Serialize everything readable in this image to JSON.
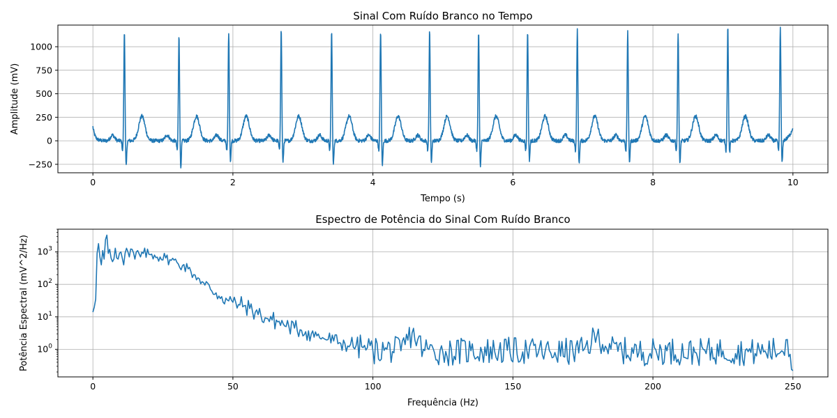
{
  "chart_data": [
    {
      "type": "line",
      "title": "Sinal Com Ruído Branco no Tempo",
      "xlabel": "Tempo (s)",
      "ylabel": "Amplitude (mV)",
      "xlim": [
        -0.5,
        10.5
      ],
      "ylim": [
        -340,
        1230
      ],
      "xticks": [
        0,
        2,
        4,
        6,
        8,
        10
      ],
      "xtick_labels": [
        "0",
        "2",
        "4",
        "6",
        "8",
        "10"
      ],
      "yticks": [
        -250,
        0,
        250,
        500,
        750,
        1000
      ],
      "ytick_labels": [
        "−250",
        "0",
        "250",
        "500",
        "750",
        "1000"
      ],
      "grid": true,
      "color": "#1f77b4",
      "signal": {
        "description_of_shape": "ECG-like trace with white noise",
        "r_peak_times_s": [
          0.45,
          1.23,
          1.94,
          2.69,
          3.41,
          4.11,
          4.81,
          5.51,
          6.21,
          6.92,
          7.64,
          8.36,
          9.07,
          9.82
        ],
        "r_peak_values_mV": [
          1110,
          1065,
          1100,
          1130,
          1110,
          1115,
          1120,
          1105,
          1115,
          1125,
          1110,
          1100,
          1155,
          1150
        ],
        "s_trough_values_mV": [
          -250,
          -260,
          -190,
          -210,
          -225,
          -230,
          -205,
          -250,
          -180,
          -225,
          -200,
          -220,
          -100,
          -215
        ],
        "t_wave_peak_mV": 290,
        "baseline_mV": 0,
        "start_value_mV": 150,
        "end_value_mV": 90
      }
    },
    {
      "type": "line",
      "title": "Espectro de Potência do Sinal Com Ruído Branco",
      "xlabel": "Frequência (Hz)",
      "ylabel": "Potência Espectral (mV^2/Hz)",
      "yscale": "log",
      "xlim": [
        -12.5,
        262.5
      ],
      "ylim_log10": [
        -0.85,
        3.7
      ],
      "xticks": [
        0,
        50,
        100,
        150,
        200,
        250
      ],
      "xtick_labels": [
        "0",
        "50",
        "100",
        "150",
        "200",
        "250"
      ],
      "yticks_log10": [
        0,
        1,
        2,
        3
      ],
      "ytick_labels": [
        "10^0",
        "10^1",
        "10^2",
        "10^3"
      ],
      "grid": true,
      "color": "#1f77b4",
      "points": [
        [
          0,
          14
        ],
        [
          0.5,
          20
        ],
        [
          1,
          35
        ],
        [
          1.5,
          900
        ],
        [
          2,
          1800
        ],
        [
          2.5,
          700
        ],
        [
          3,
          400
        ],
        [
          3.5,
          1100
        ],
        [
          4,
          600
        ],
        [
          4.5,
          2400
        ],
        [
          5,
          3300
        ],
        [
          5.5,
          900
        ],
        [
          6,
          1200
        ],
        [
          7,
          500
        ],
        [
          8,
          1300
        ],
        [
          9,
          600
        ],
        [
          10,
          1000
        ],
        [
          11,
          400
        ],
        [
          12,
          1300
        ],
        [
          13,
          700
        ],
        [
          14,
          1200
        ],
        [
          15,
          600
        ],
        [
          16,
          1100
        ],
        [
          17,
          700
        ],
        [
          18,
          900
        ],
        [
          20,
          850
        ],
        [
          22,
          800
        ],
        [
          24,
          700
        ],
        [
          26,
          650
        ],
        [
          28,
          550
        ],
        [
          30,
          480
        ],
        [
          32,
          380
        ],
        [
          34,
          300
        ],
        [
          35,
          250
        ],
        [
          36,
          200
        ],
        [
          38,
          150
        ],
        [
          40,
          95
        ],
        [
          42,
          70
        ],
        [
          44,
          55
        ],
        [
          46,
          42
        ],
        [
          48,
          33
        ],
        [
          50,
          28
        ],
        [
          52,
          24
        ],
        [
          54,
          22
        ],
        [
          56,
          18
        ],
        [
          58,
          14
        ],
        [
          60,
          11
        ],
        [
          62,
          9
        ],
        [
          64,
          8
        ],
        [
          66,
          7
        ],
        [
          68,
          6
        ],
        [
          70,
          5
        ],
        [
          72,
          4.5
        ],
        [
          74,
          4
        ],
        [
          76,
          3.5
        ],
        [
          78,
          3
        ],
        [
          80,
          2.6
        ],
        [
          82,
          2.3
        ],
        [
          84,
          2
        ],
        [
          86,
          1.8
        ],
        [
          88,
          1.6
        ],
        [
          90,
          1.5
        ],
        [
          92,
          1.4
        ],
        [
          94,
          1.3
        ],
        [
          96,
          1.2
        ],
        [
          98,
          1.1
        ],
        [
          100,
          0.9
        ],
        [
          105,
          1.0
        ],
        [
          110,
          0.9
        ],
        [
          114,
          3.2
        ],
        [
          118,
          1.0
        ],
        [
          125,
          0.8
        ],
        [
          135,
          0.9
        ],
        [
          145,
          0.9
        ],
        [
          155,
          0.9
        ],
        [
          165,
          0.8
        ],
        [
          175,
          0.9
        ],
        [
          180,
          2.6
        ],
        [
          185,
          1.0
        ],
        [
          195,
          0.8
        ],
        [
          205,
          0.9
        ],
        [
          215,
          0.8
        ],
        [
          225,
          0.9
        ],
        [
          235,
          0.8
        ],
        [
          240,
          0.9
        ],
        [
          246,
          0.9
        ],
        [
          248,
          2.0
        ],
        [
          249,
          0.7
        ],
        [
          250,
          0.22
        ]
      ]
    }
  ]
}
